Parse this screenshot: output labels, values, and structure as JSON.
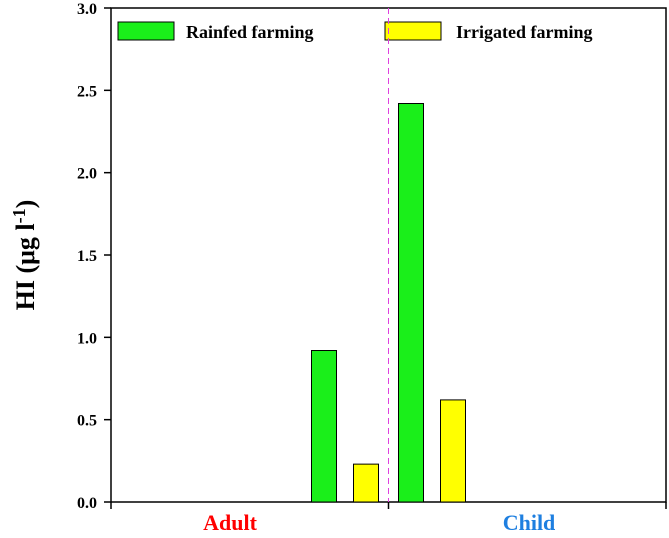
{
  "chart_data": {
    "type": "bar",
    "title": "",
    "ylabel": "HI (μg l⁻¹)",
    "ylabel_main": "HI (μg l",
    "ylabel_sup": "-1",
    "ylabel_close": ")",
    "xlabel": "",
    "ylim": [
      0,
      3.0
    ],
    "yticks": [
      "0.0",
      "0.5",
      "1.0",
      "1.5",
      "2.0",
      "2.5",
      "3.0"
    ],
    "grid": false,
    "legend_position": "top",
    "categories": [
      {
        "label": "Adult",
        "color": "#ff0000"
      },
      {
        "label": "Child",
        "color": "#1e7fe0"
      }
    ],
    "series": [
      {
        "name": "Rainfed farming",
        "color": "#1aef1a",
        "values": [
          0.92,
          2.42
        ]
      },
      {
        "name": "Irrigated farming",
        "color": "#ffff00",
        "values": [
          0.23,
          0.62
        ]
      }
    ],
    "divider": {
      "style": "dashed",
      "color": "#e040e0"
    }
  }
}
